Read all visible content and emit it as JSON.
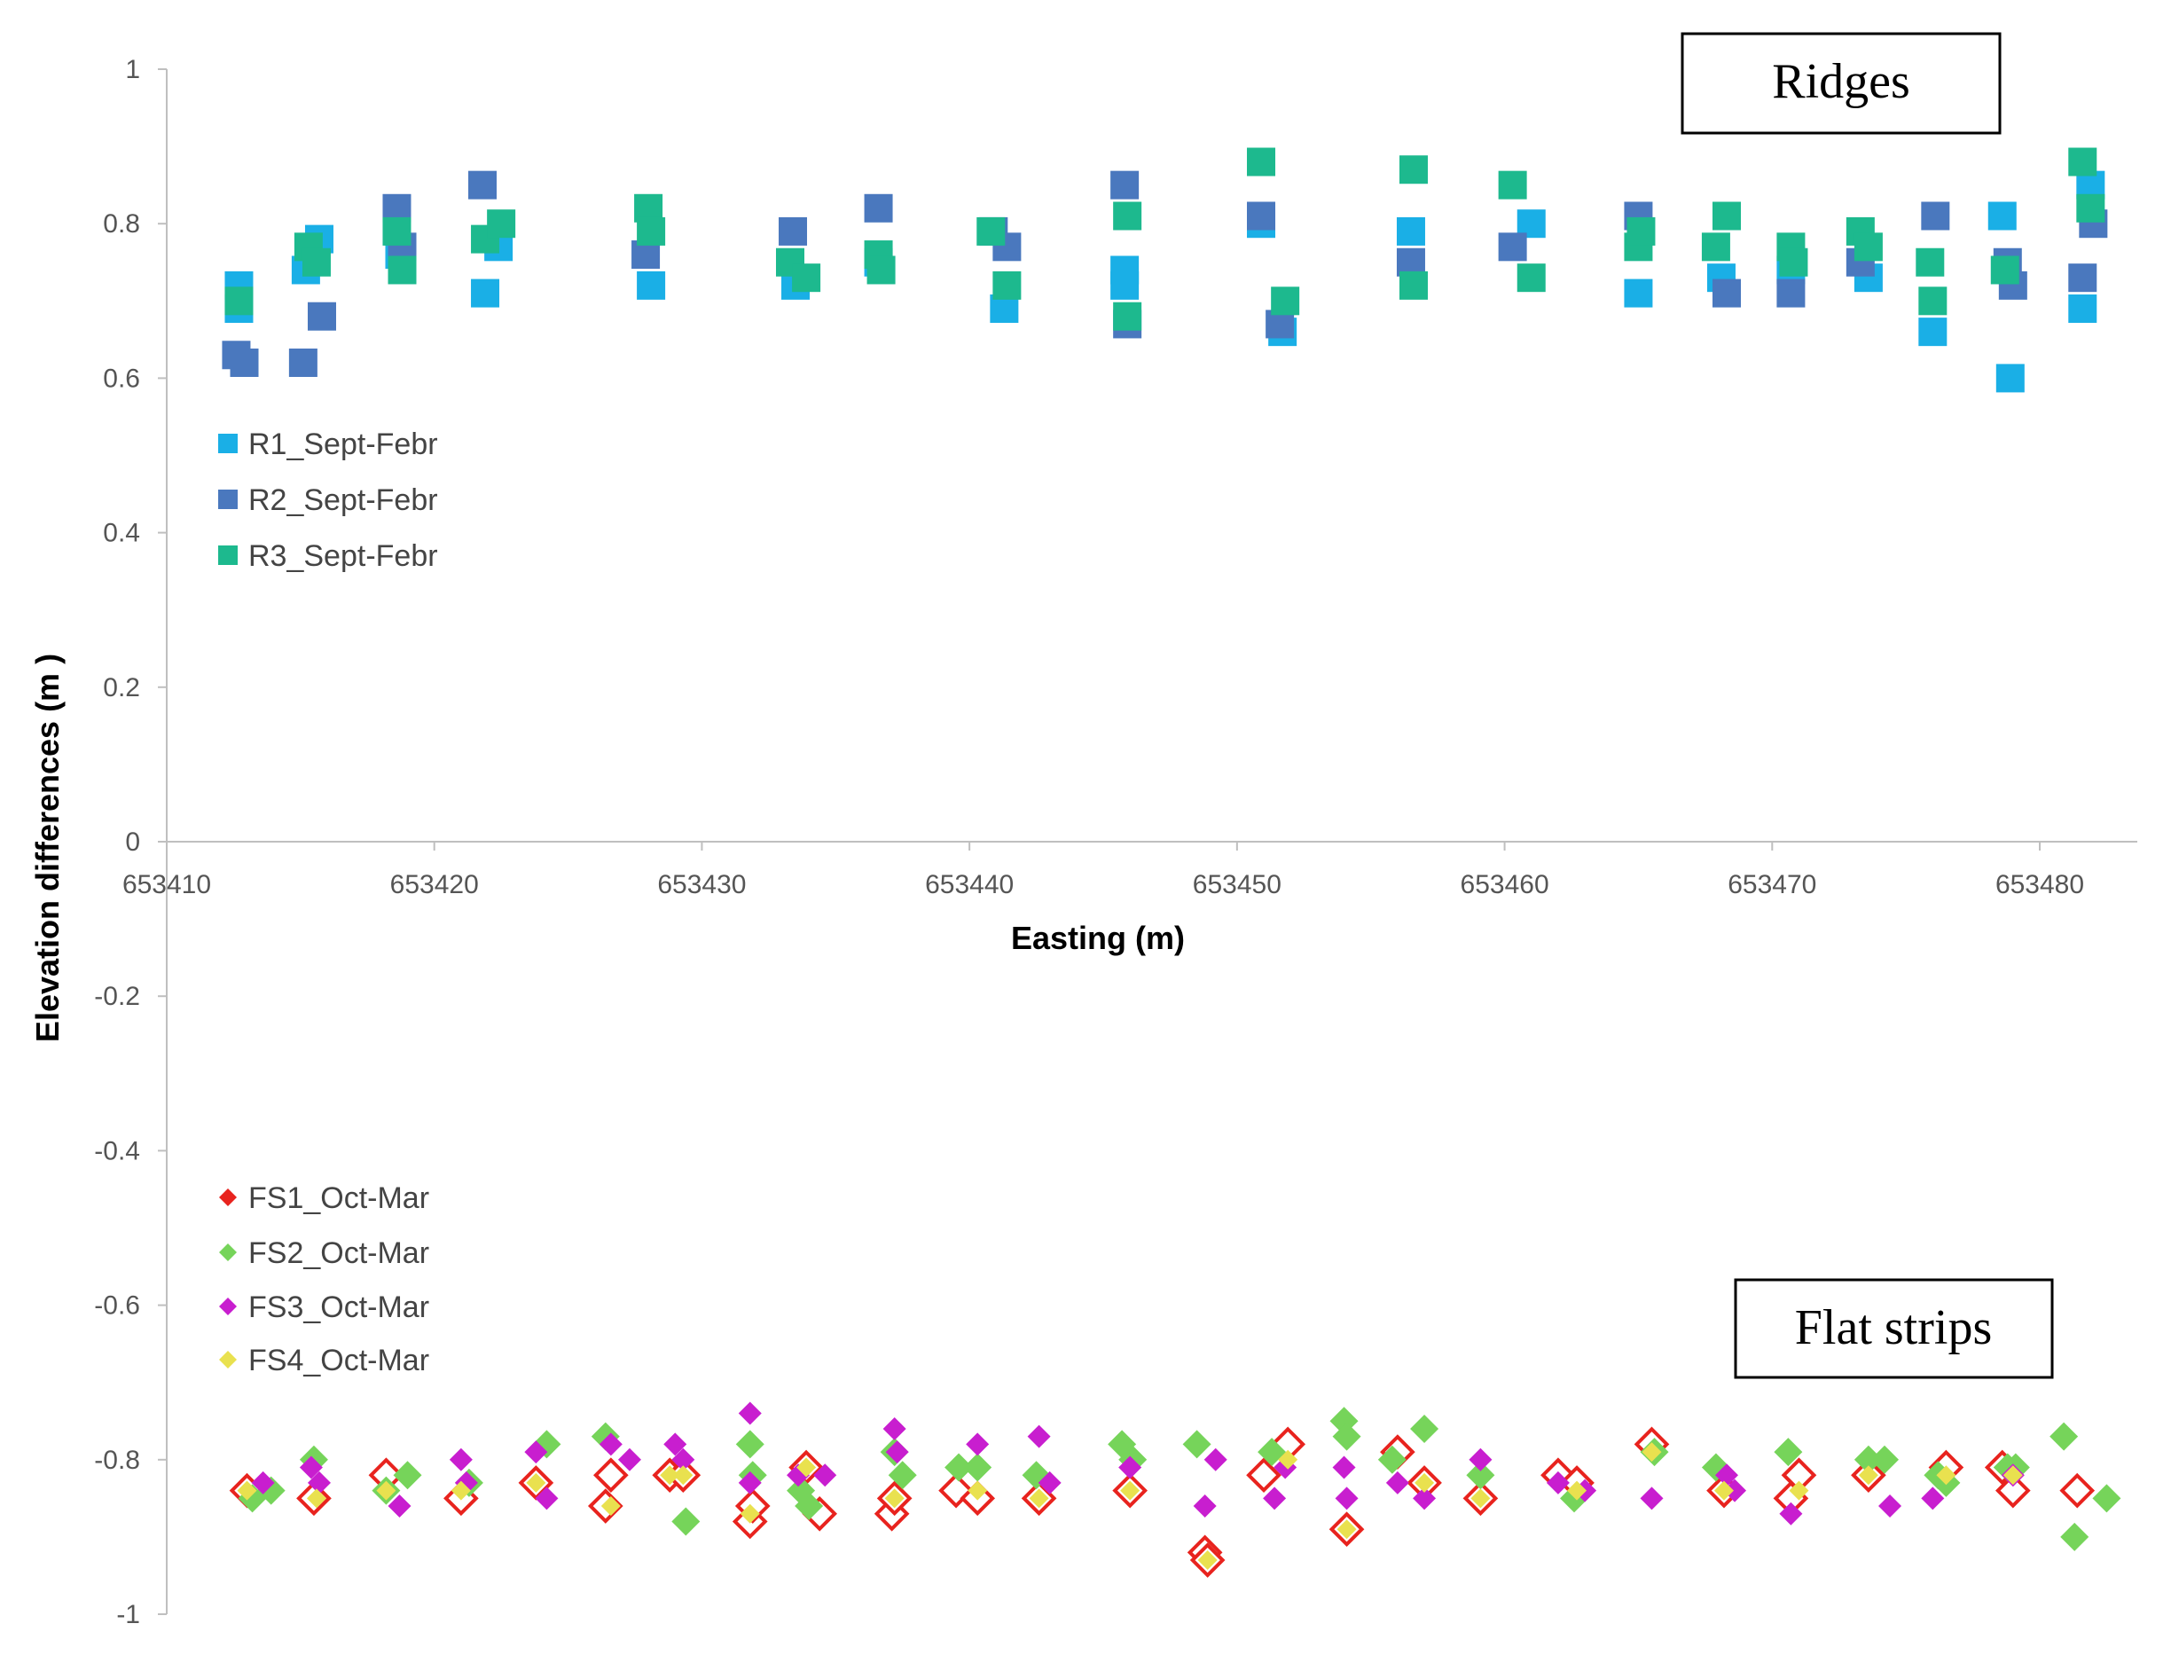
{
  "chart_data": {
    "type": "scatter",
    "title": "",
    "xlabel": "Easting (m)",
    "ylabel": "Elevation differences (m )",
    "xlim": [
      653410,
      653485
    ],
    "ylim": [
      -1,
      1
    ],
    "xticks": [
      653410,
      653420,
      653430,
      653440,
      653450,
      653460,
      653470,
      653480
    ],
    "yticks": [
      1,
      0.8,
      0.6,
      0.4,
      0.2,
      0,
      -0.2,
      -0.4,
      -0.6,
      -0.8,
      -1
    ],
    "ytick_labels": [
      "1",
      "0.8",
      "0.6",
      "0.4",
      "0.2",
      "0",
      "-0.2",
      "-0.4",
      "-0.6",
      "-0.8",
      "-1"
    ],
    "annotations": [
      "Ridges",
      "Flat strips"
    ],
    "series": [
      {
        "name": "R1_Sept-Febr",
        "marker": "square",
        "color": "#1AAFE6",
        "x": [
          653412.7,
          653412.7,
          653415.2,
          653415.7,
          653418.7,
          653421.9,
          653422.4,
          653428.1,
          653433.5,
          653436.6,
          653441.3,
          653445.8,
          653445.8,
          653450.9,
          653451.7,
          653456.5,
          653461.0,
          653465.0,
          653468.1,
          653470.7,
          653473.6,
          653476.0,
          653478.6,
          653478.9,
          653481.6,
          653481.9
        ],
        "y": [
          0.72,
          0.69,
          0.74,
          0.78,
          0.76,
          0.71,
          0.77,
          0.72,
          0.72,
          0.75,
          0.69,
          0.74,
          0.72,
          0.8,
          0.66,
          0.79,
          0.8,
          0.71,
          0.73,
          0.74,
          0.73,
          0.66,
          0.81,
          0.6,
          0.69,
          0.85
        ]
      },
      {
        "name": "R2_Sept-Febr",
        "marker": "square",
        "color": "#4A78BE",
        "x": [
          653412.6,
          653412.9,
          653415.1,
          653415.8,
          653418.6,
          653418.8,
          653421.8,
          653427.9,
          653433.4,
          653436.6,
          653440.9,
          653441.4,
          653445.8,
          653445.9,
          653450.9,
          653451.6,
          653456.5,
          653460.3,
          653465.0,
          653468.3,
          653470.7,
          653473.3,
          653476.1,
          653478.8,
          653479.0,
          653481.6,
          653482.0
        ],
        "y": [
          0.63,
          0.62,
          0.62,
          0.68,
          0.82,
          0.77,
          0.85,
          0.76,
          0.79,
          0.82,
          0.79,
          0.77,
          0.85,
          0.67,
          0.81,
          0.67,
          0.75,
          0.77,
          0.81,
          0.71,
          0.71,
          0.75,
          0.81,
          0.75,
          0.72,
          0.73,
          0.8
        ]
      },
      {
        "name": "R3_Sept-Febr",
        "marker": "square",
        "color": "#1DB98E",
        "x": [
          653412.7,
          653415.3,
          653415.6,
          653418.6,
          653418.8,
          653421.9,
          653422.5,
          653428.0,
          653428.1,
          653433.3,
          653433.9,
          653436.6,
          653436.7,
          653440.8,
          653441.4,
          653445.9,
          653445.9,
          653450.9,
          653451.8,
          653456.6,
          653456.6,
          653460.3,
          653461.0,
          653465.0,
          653465.1,
          653467.9,
          653468.3,
          653470.7,
          653470.8,
          653473.3,
          653473.6,
          653475.9,
          653476.0,
          653478.7,
          653481.6,
          653481.9
        ],
        "y": [
          0.7,
          0.77,
          0.75,
          0.79,
          0.74,
          0.78,
          0.8,
          0.82,
          0.79,
          0.75,
          0.73,
          0.76,
          0.74,
          0.79,
          0.72,
          0.81,
          0.68,
          0.88,
          0.7,
          0.87,
          0.72,
          0.85,
          0.73,
          0.77,
          0.79,
          0.77,
          0.81,
          0.77,
          0.75,
          0.79,
          0.77,
          0.75,
          0.7,
          0.74,
          0.88,
          0.82
        ]
      },
      {
        "name": "FS1_Oct-Mar",
        "marker": "diamond",
        "color": "#E8231E",
        "x": [
          653413.0,
          653415.5,
          653418.2,
          653421.0,
          653423.8,
          653426.4,
          653426.6,
          653428.8,
          653429.3,
          653431.8,
          653431.9,
          653433.9,
          653434.4,
          653437.1,
          653437.2,
          653439.5,
          653440.3,
          653442.6,
          653446.0,
          653448.8,
          653448.9,
          653451.0,
          653451.9,
          653454.1,
          653456.0,
          653457.0,
          653459.1,
          653462.0,
          653462.7,
          653465.5,
          653468.2,
          653470.7,
          653471.0,
          653473.6,
          653476.5,
          653478.6,
          653479.0,
          653481.4
        ],
        "y": [
          -0.84,
          -0.85,
          -0.82,
          -0.85,
          -0.83,
          -0.86,
          -0.82,
          -0.82,
          -0.82,
          -0.88,
          -0.86,
          -0.81,
          -0.87,
          -0.87,
          -0.85,
          -0.84,
          -0.85,
          -0.85,
          -0.84,
          -0.92,
          -0.93,
          -0.82,
          -0.78,
          -0.89,
          -0.79,
          -0.83,
          -0.85,
          -0.82,
          -0.83,
          -0.78,
          -0.84,
          -0.85,
          -0.82,
          -0.82,
          -0.81,
          -0.81,
          -0.84,
          -0.84
        ]
      },
      {
        "name": "FS2_Oct-Mar",
        "marker": "diamond",
        "color": "#76D45A",
        "x": [
          653413.2,
          653413.9,
          653415.5,
          653418.2,
          653419.0,
          653421.3,
          653424.2,
          653426.4,
          653429.4,
          653431.8,
          653431.9,
          653433.7,
          653434.0,
          653437.2,
          653437.5,
          653439.6,
          653440.3,
          653442.5,
          653445.7,
          653446.1,
          653448.5,
          653451.3,
          653454.0,
          653454.1,
          653455.8,
          653457.0,
          653459.1,
          653462.6,
          653465.6,
          653467.9,
          653470.6,
          653473.6,
          653474.2,
          653476.2,
          653476.5,
          653478.8,
          653479.1,
          653480.9,
          653481.3,
          653482.5
        ],
        "y": [
          -0.85,
          -0.84,
          -0.8,
          -0.84,
          -0.82,
          -0.83,
          -0.78,
          -0.77,
          -0.88,
          -0.78,
          -0.82,
          -0.84,
          -0.86,
          -0.79,
          -0.82,
          -0.81,
          -0.81,
          -0.82,
          -0.78,
          -0.8,
          -0.78,
          -0.79,
          -0.75,
          -0.77,
          -0.8,
          -0.76,
          -0.82,
          -0.85,
          -0.79,
          -0.81,
          -0.79,
          -0.8,
          -0.8,
          -0.82,
          -0.83,
          -0.81,
          -0.81,
          -0.77,
          -0.9,
          -0.85
        ]
      },
      {
        "name": "FS3_Oct-Mar",
        "marker": "diamond",
        "color": "#C81ECF",
        "x": [
          653413.6,
          653415.4,
          653415.7,
          653418.7,
          653421.0,
          653421.2,
          653423.8,
          653424.2,
          653426.6,
          653427.3,
          653429.0,
          653429.3,
          653431.8,
          653431.8,
          653433.6,
          653434.6,
          653437.2,
          653437.3,
          653440.3,
          653442.6,
          653443.0,
          653446.0,
          653448.8,
          653449.2,
          653451.4,
          653451.8,
          653454.0,
          653454.1,
          653456.0,
          653457.0,
          653459.1,
          653462.0,
          653463.0,
          653465.5,
          653468.3,
          653468.6,
          653470.7,
          653474.4,
          653476.0,
          653479.0
        ],
        "y": [
          -0.83,
          -0.81,
          -0.83,
          -0.86,
          -0.8,
          -0.83,
          -0.79,
          -0.85,
          -0.78,
          -0.8,
          -0.78,
          -0.8,
          -0.74,
          -0.83,
          -0.82,
          -0.82,
          -0.76,
          -0.79,
          -0.78,
          -0.77,
          -0.83,
          -0.81,
          -0.86,
          -0.8,
          -0.85,
          -0.81,
          -0.81,
          -0.85,
          -0.83,
          -0.85,
          -0.8,
          -0.83,
          -0.84,
          -0.85,
          -0.82,
          -0.84,
          -0.87,
          -0.86,
          -0.85,
          -0.82
        ]
      },
      {
        "name": "FS4_Oct-Mar",
        "marker": "diamond",
        "color": "#E9E14F",
        "x": [
          653413.0,
          653415.6,
          653418.2,
          653421.0,
          653423.8,
          653426.6,
          653428.8,
          653429.3,
          653431.8,
          653433.9,
          653437.2,
          653440.3,
          653442.6,
          653446.0,
          653448.9,
          653451.9,
          653454.1,
          653457.0,
          653459.1,
          653462.7,
          653465.5,
          653468.2,
          653471.0,
          653473.6,
          653476.5,
          653479.0
        ],
        "y": [
          -0.84,
          -0.85,
          -0.84,
          -0.84,
          -0.83,
          -0.86,
          -0.82,
          -0.82,
          -0.87,
          -0.81,
          -0.85,
          -0.84,
          -0.85,
          -0.84,
          -0.93,
          -0.8,
          -0.89,
          -0.83,
          -0.85,
          -0.84,
          -0.79,
          -0.84,
          -0.84,
          -0.82,
          -0.82,
          -0.82
        ]
      }
    ]
  }
}
